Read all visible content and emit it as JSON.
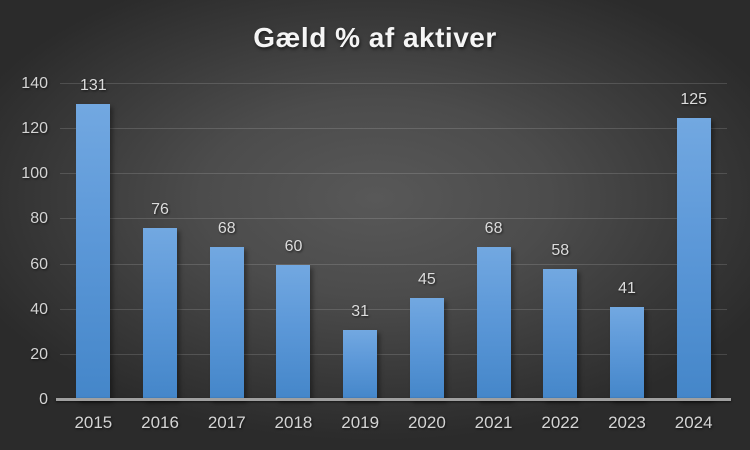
{
  "chart_data": {
    "type": "bar",
    "title": "Gæld % af aktiver",
    "categories": [
      "2015",
      "2016",
      "2017",
      "2018",
      "2019",
      "2020",
      "2021",
      "2022",
      "2023",
      "2024"
    ],
    "values": [
      131,
      76,
      68,
      60,
      31,
      45,
      68,
      58,
      41,
      125
    ],
    "xlabel": "",
    "ylabel": "",
    "ylim": [
      0,
      140
    ],
    "ytick_step": 20,
    "yticks": [
      0,
      20,
      40,
      60,
      80,
      100,
      120,
      140
    ],
    "grid": true,
    "legend": "none",
    "data_labels_shown": true,
    "colors": {
      "bar_top": "#72a8e1",
      "bar_bottom": "#4486c9",
      "background_center": "#585858",
      "background_edge": "#2b2b2b",
      "gridline": "rgba(255,255,255,0.14)",
      "axis_line": "#a0a0a0",
      "text": "#d4d4d4",
      "title_text": "#f5f5f5"
    }
  }
}
